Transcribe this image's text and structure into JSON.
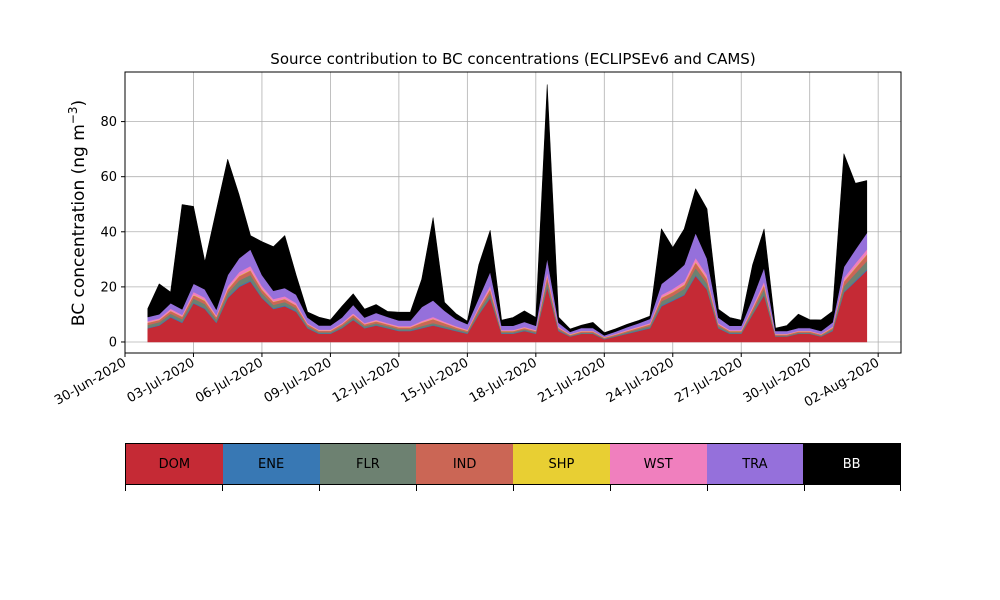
{
  "chart_data": {
    "type": "area",
    "stacked": true,
    "title": "Source contribution to BC concentrations (ECLIPSEv6 and CAMS)",
    "ylabel": "BC concentration (ng m",
    "ylabel_sup": "−3",
    "ylabel_close": ")",
    "xlabel": "",
    "ylim": [
      -4,
      98
    ],
    "xlim": [
      "2020-06-30",
      "2020-08-03"
    ],
    "yticks": [
      0,
      20,
      40,
      60,
      80
    ],
    "xticks": [
      "30-Jun-2020",
      "03-Jul-2020",
      "06-Jul-2020",
      "09-Jul-2020",
      "12-Jul-2020",
      "15-Jul-2020",
      "18-Jul-2020",
      "21-Jul-2020",
      "24-Jul-2020",
      "27-Jul-2020",
      "30-Jul-2020",
      "02-Aug-2020"
    ],
    "grid": true,
    "x": [
      "2020-07-01",
      "2020-07-01 12:00",
      "2020-07-02",
      "2020-07-02 12:00",
      "2020-07-03",
      "2020-07-03 12:00",
      "2020-07-04",
      "2020-07-04 12:00",
      "2020-07-05",
      "2020-07-05 12:00",
      "2020-07-06",
      "2020-07-06 12:00",
      "2020-07-07",
      "2020-07-07 12:00",
      "2020-07-08",
      "2020-07-08 12:00",
      "2020-07-09",
      "2020-07-09 12:00",
      "2020-07-10",
      "2020-07-10 12:00",
      "2020-07-11",
      "2020-07-11 12:00",
      "2020-07-12",
      "2020-07-12 12:00",
      "2020-07-13",
      "2020-07-13 12:00",
      "2020-07-14",
      "2020-07-14 12:00",
      "2020-07-15",
      "2020-07-15 12:00",
      "2020-07-16",
      "2020-07-16 12:00",
      "2020-07-17",
      "2020-07-17 12:00",
      "2020-07-18",
      "2020-07-18 12:00",
      "2020-07-19",
      "2020-07-19 12:00",
      "2020-07-20",
      "2020-07-20 12:00",
      "2020-07-21",
      "2020-07-21 12:00",
      "2020-07-22",
      "2020-07-22 12:00",
      "2020-07-23",
      "2020-07-23 12:00",
      "2020-07-24",
      "2020-07-24 12:00",
      "2020-07-25",
      "2020-07-25 12:00",
      "2020-07-26",
      "2020-07-26 12:00",
      "2020-07-27",
      "2020-07-27 12:00",
      "2020-07-28",
      "2020-07-28 12:00",
      "2020-07-29",
      "2020-07-29 12:00",
      "2020-07-30",
      "2020-07-30 12:00",
      "2020-07-31",
      "2020-07-31 12:00",
      "2020-08-01",
      "2020-08-01 12:00"
    ],
    "series": [
      {
        "name": "DOM",
        "color": "#c52a35",
        "values": [
          5,
          6,
          9,
          7,
          14,
          12,
          7,
          16,
          20,
          22,
          16,
          12,
          13,
          11,
          5,
          3,
          3,
          5,
          8,
          5,
          6,
          5,
          4,
          4,
          5,
          6,
          5,
          4,
          3,
          10,
          16,
          3,
          3,
          4,
          3,
          20,
          4,
          2,
          3,
          3,
          1,
          2,
          3,
          4,
          5,
          13,
          15,
          17,
          24,
          19,
          5,
          3,
          3,
          10,
          17,
          2,
          2,
          3,
          3,
          2,
          4,
          18,
          22,
          26
        ]
      },
      {
        "name": "ENE",
        "color": "#3878b4",
        "values": [
          0.2,
          0.2,
          0.3,
          0.3,
          0.3,
          0.3,
          0.2,
          0.3,
          0.4,
          0.4,
          0.3,
          0.3,
          0.3,
          0.3,
          0.2,
          0.2,
          0.2,
          0.2,
          0.2,
          0.2,
          0.2,
          0.2,
          0.2,
          0.2,
          0.2,
          0.2,
          0.2,
          0.2,
          0.2,
          0.2,
          0.3,
          0.2,
          0.2,
          0.2,
          0.2,
          0.3,
          0.2,
          0.1,
          0.1,
          0.1,
          0.1,
          0.1,
          0.2,
          0.2,
          0.2,
          0.3,
          0.3,
          0.3,
          0.4,
          0.3,
          0.2,
          0.2,
          0.2,
          0.2,
          0.3,
          0.1,
          0.1,
          0.1,
          0.1,
          0.1,
          0.2,
          0.3,
          0.4,
          0.4
        ]
      },
      {
        "name": "FLR",
        "color": "#6d8171",
        "values": [
          1,
          1,
          1,
          1,
          1.5,
          1.5,
          1,
          1.5,
          2,
          2,
          1.5,
          1.2,
          1.2,
          1,
          0.6,
          0.4,
          0.4,
          0.6,
          0.8,
          0.6,
          0.6,
          0.6,
          0.5,
          0.5,
          0.6,
          0.7,
          0.6,
          0.5,
          0.4,
          1,
          1.5,
          0.4,
          0.4,
          0.4,
          0.4,
          2,
          0.4,
          0.2,
          0.3,
          0.3,
          0.2,
          0.3,
          0.4,
          0.5,
          0.6,
          1.5,
          1.5,
          2,
          2.5,
          2,
          0.6,
          0.4,
          0.4,
          1,
          2,
          0.3,
          0.3,
          0.3,
          0.3,
          0.3,
          0.5,
          2,
          2.5,
          3
        ]
      },
      {
        "name": "IND",
        "color": "#cb6655",
        "values": [
          0.8,
          0.8,
          1,
          0.9,
          1.2,
          1.2,
          0.9,
          1.3,
          1.5,
          1.6,
          1.3,
          1.1,
          1.1,
          1,
          0.6,
          0.5,
          0.5,
          0.6,
          0.8,
          0.6,
          0.7,
          0.6,
          0.6,
          0.6,
          1.2,
          1.4,
          1,
          0.6,
          0.5,
          1,
          1.4,
          0.4,
          0.4,
          0.5,
          0.4,
          1.6,
          0.5,
          0.3,
          0.4,
          0.4,
          0.3,
          0.3,
          0.4,
          0.5,
          0.6,
          1.2,
          1.3,
          1.4,
          2,
          1.6,
          0.6,
          0.4,
          0.4,
          1,
          1.4,
          0.3,
          0.3,
          0.4,
          0.4,
          0.3,
          0.5,
          1.6,
          2,
          2.3
        ]
      },
      {
        "name": "SHP",
        "color": "#e8cf33",
        "values": [
          0.1,
          0.1,
          0.1,
          0.1,
          0.2,
          0.2,
          0.1,
          0.2,
          0.2,
          0.2,
          0.2,
          0.1,
          0.1,
          0.1,
          0.1,
          0.1,
          0.1,
          0.1,
          0.1,
          0.1,
          0.1,
          0.1,
          0.1,
          0.1,
          0.1,
          0.1,
          0.1,
          0.1,
          0.1,
          0.1,
          0.2,
          0.1,
          0.1,
          0.1,
          0.1,
          0.2,
          0.1,
          0.1,
          0.1,
          0.1,
          0.1,
          0.1,
          0.1,
          0.1,
          0.1,
          0.2,
          0.2,
          0.2,
          0.2,
          0.2,
          0.1,
          0.1,
          0.1,
          0.1,
          0.2,
          0.1,
          0.1,
          0.1,
          0.1,
          0.1,
          0.1,
          0.2,
          0.2,
          0.2
        ]
      },
      {
        "name": "WST",
        "color": "#f07fbe",
        "values": [
          0.5,
          0.5,
          0.7,
          0.6,
          1,
          0.9,
          0.6,
          1,
          1.3,
          1.4,
          1.1,
          0.9,
          0.9,
          0.8,
          0.4,
          0.3,
          0.3,
          0.4,
          0.6,
          0.4,
          0.5,
          0.4,
          0.4,
          0.4,
          0.6,
          0.7,
          0.5,
          0.4,
          0.3,
          0.7,
          1.1,
          0.3,
          0.3,
          0.3,
          0.3,
          1.3,
          0.3,
          0.2,
          0.2,
          0.2,
          0.1,
          0.2,
          0.3,
          0.3,
          0.4,
          0.9,
          1,
          1.1,
          1.5,
          1.2,
          0.4,
          0.3,
          0.3,
          0.7,
          1.1,
          0.2,
          0.2,
          0.2,
          0.2,
          0.2,
          0.3,
          1.2,
          1.5,
          1.7
        ]
      },
      {
        "name": "TRA",
        "color": "#9570db",
        "values": [
          1.5,
          1.5,
          2,
          2,
          3,
          3,
          2,
          4,
          5,
          6,
          4,
          3,
          3,
          3,
          2,
          1.5,
          1.5,
          2,
          3,
          2,
          2.5,
          2.2,
          2,
          2,
          5,
          6,
          4,
          2.5,
          2,
          3,
          5,
          1.5,
          1.5,
          1.8,
          1.5,
          5,
          1.5,
          0.8,
          1,
          1,
          0.6,
          0.8,
          1,
          1.2,
          1.5,
          4,
          5,
          6,
          9,
          6,
          2,
          1.5,
          1.5,
          3,
          5,
          1,
          1,
          1,
          1,
          1,
          1.5,
          4,
          5,
          6
        ]
      },
      {
        "name": "BB",
        "color": "#000000",
        "values": [
          3,
          11,
          4,
          38,
          28,
          10,
          36,
          42,
          23,
          5,
          12,
          16,
          19,
          7,
          2,
          3,
          2,
          4,
          4,
          3,
          3,
          2,
          3,
          3,
          10,
          30,
          3,
          2,
          1,
          12,
          15,
          2,
          3,
          4,
          3,
          63,
          2,
          1,
          1,
          2,
          1,
          1,
          1,
          1,
          1,
          20,
          10,
          13,
          16,
          18,
          3,
          3,
          2,
          12,
          14,
          1,
          2,
          5,
          3,
          4,
          4,
          41,
          24,
          19
        ]
      }
    ],
    "legend": [
      "DOM",
      "ENE",
      "FLR",
      "IND",
      "SHP",
      "WST",
      "TRA",
      "BB"
    ],
    "legend_placement": "bottom"
  }
}
